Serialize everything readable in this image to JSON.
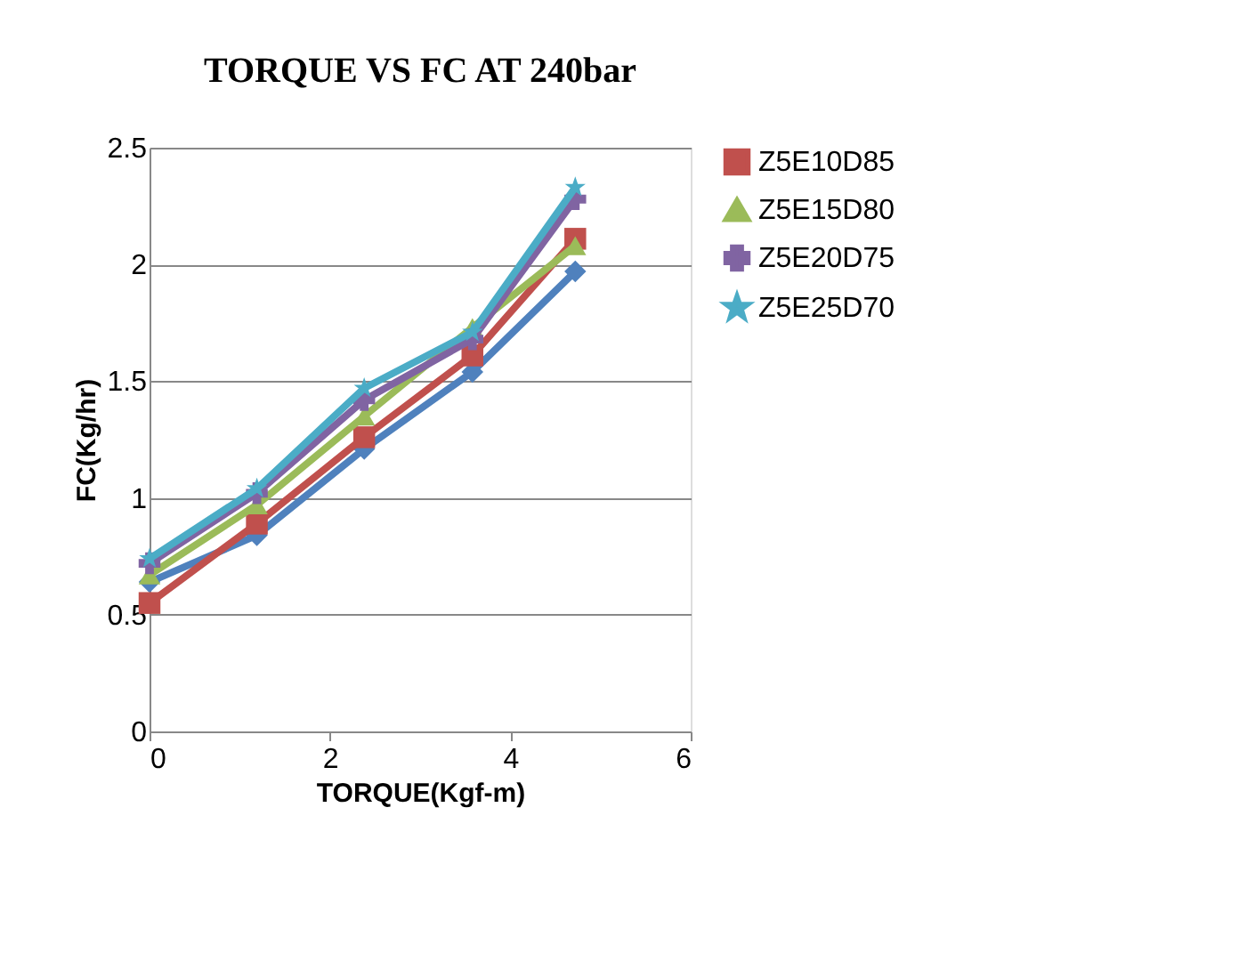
{
  "chart_data": {
    "type": "line",
    "title": "TORQUE VS FC AT 240bar",
    "xlabel": "TORQUE(Kgf-m)",
    "ylabel": "FC(Kg/hr)",
    "x": [
      0,
      1.19,
      2.38,
      3.58,
      4.72
    ],
    "series": [
      {
        "color": "#4f81bd",
        "marker": "diamond",
        "values": [
          0.64,
          0.84,
          1.21,
          1.54,
          1.97
        ]
      },
      {
        "name": "Z5E10D85",
        "color": "#c0504d",
        "marker": "square",
        "values": [
          0.55,
          0.89,
          1.26,
          1.61,
          2.11
        ]
      },
      {
        "name": "Z5E15D80",
        "color": "#9bbb59",
        "marker": "triangle",
        "values": [
          0.67,
          0.97,
          1.35,
          1.73,
          2.08
        ]
      },
      {
        "name": "Z5E20D75",
        "color": "#8064a2",
        "marker": "cross",
        "values": [
          0.72,
          1.02,
          1.42,
          1.68,
          2.28
        ]
      },
      {
        "name": "Z5E25D70",
        "color": "#4bacc6",
        "marker": "star",
        "values": [
          0.74,
          1.04,
          1.47,
          1.71,
          2.33
        ]
      }
    ],
    "xlim": [
      0,
      6
    ],
    "xticks": [
      0,
      2,
      4,
      6
    ],
    "ylim": [
      0,
      2.5
    ],
    "yticks": [
      0,
      0.5,
      1,
      1.5,
      2,
      2.5
    ],
    "grid": "y",
    "legend": "right",
    "line_style": "solid"
  }
}
